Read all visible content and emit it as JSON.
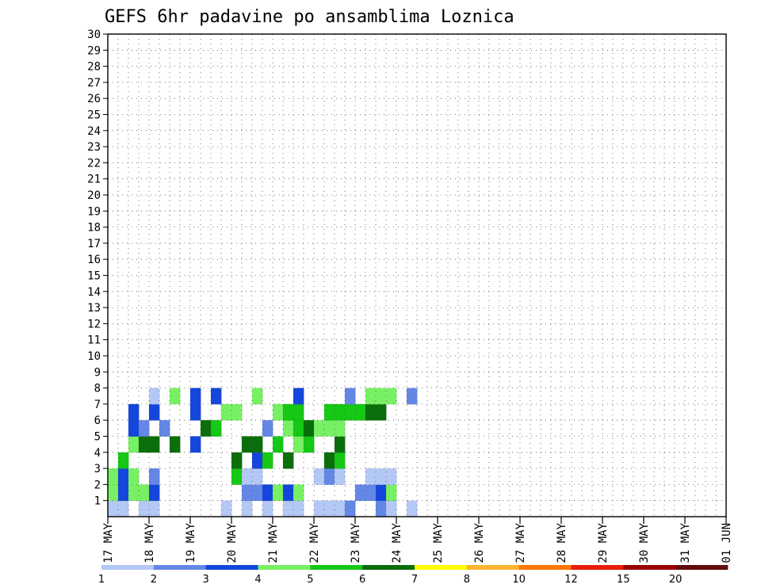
{
  "chart_data": {
    "type": "heatmap",
    "title": "GEFS 6hr padavine po ansamblima Loznica",
    "xlabel": "",
    "ylabel": "",
    "x_ticks": [
      "17 MAY",
      "18 MAY",
      "19 MAY",
      "20 MAY",
      "21 MAY",
      "22 MAY",
      "23 MAY",
      "24 MAY",
      "25 MAY",
      "26 MAY",
      "27 MAY",
      "28 MAY",
      "29 MAY",
      "30 MAY",
      "31 MAY",
      "01 JUN"
    ],
    "x_range": [
      "17 MAY 00Z",
      "01 JUN 00Z"
    ],
    "time_step_hours": 6,
    "y_ticks": [
      1,
      2,
      3,
      4,
      5,
      6,
      7,
      8,
      9,
      10,
      11,
      12,
      13,
      14,
      15,
      16,
      17,
      18,
      19,
      20,
      21,
      22,
      23,
      24,
      25,
      26,
      27,
      28,
      29,
      30
    ],
    "y_range": [
      0,
      30
    ],
    "grid": true,
    "legend_position": "bottom",
    "colorbar": {
      "labels": [
        "1",
        "2",
        "3",
        "4",
        "5",
        "6",
        "7",
        "8",
        "10",
        "12",
        "15",
        "20"
      ],
      "colors": [
        "#b4c8f5",
        "#6487e6",
        "#1446dc",
        "#78f064",
        "#14c814",
        "#0a6e0a",
        "#ffff00",
        "#ffb432",
        "#ff7800",
        "#e61e0a",
        "#9b0000",
        "#640a0a"
      ]
    },
    "cells": [
      [
        1,
        1,
        0
      ],
      [
        1,
        1,
        1
      ],
      [
        1,
        1,
        3
      ],
      [
        1,
        1,
        4
      ],
      [
        1,
        1,
        11
      ],
      [
        1,
        1,
        13
      ],
      [
        1,
        1,
        15
      ],
      [
        1,
        1,
        17
      ],
      [
        1,
        1,
        18
      ],
      [
        1,
        1,
        20
      ],
      [
        1,
        1,
        21
      ],
      [
        1,
        1,
        22
      ],
      [
        1,
        2,
        23
      ],
      [
        1,
        2,
        26
      ],
      [
        1,
        1,
        27
      ],
      [
        1,
        1,
        29
      ],
      [
        2,
        4,
        0
      ],
      [
        2,
        3,
        1
      ],
      [
        2,
        4,
        2
      ],
      [
        2,
        4,
        3
      ],
      [
        2,
        3,
        4
      ],
      [
        2,
        2,
        13
      ],
      [
        2,
        2,
        14
      ],
      [
        2,
        3,
        15
      ],
      [
        2,
        4,
        16
      ],
      [
        2,
        3,
        17
      ],
      [
        2,
        4,
        18
      ],
      [
        2,
        2,
        24
      ],
      [
        2,
        2,
        25
      ],
      [
        2,
        3,
        26
      ],
      [
        2,
        4,
        27
      ],
      [
        3,
        4,
        0
      ],
      [
        3,
        3,
        1
      ],
      [
        3,
        4,
        2
      ],
      [
        3,
        2,
        4
      ],
      [
        3,
        5,
        12
      ],
      [
        3,
        1,
        13
      ],
      [
        3,
        1,
        14
      ],
      [
        3,
        1,
        20
      ],
      [
        3,
        2,
        21
      ],
      [
        3,
        1,
        22
      ],
      [
        3,
        1,
        25
      ],
      [
        3,
        1,
        26
      ],
      [
        3,
        1,
        27
      ],
      [
        4,
        5,
        1
      ],
      [
        4,
        6,
        12
      ],
      [
        4,
        3,
        14
      ],
      [
        4,
        5,
        15
      ],
      [
        4,
        6,
        17
      ],
      [
        4,
        6,
        21
      ],
      [
        4,
        5,
        22
      ],
      [
        5,
        4,
        2
      ],
      [
        5,
        6,
        3
      ],
      [
        5,
        6,
        4
      ],
      [
        5,
        6,
        6
      ],
      [
        5,
        3,
        8
      ],
      [
        5,
        6,
        13
      ],
      [
        5,
        6,
        14
      ],
      [
        5,
        5,
        16
      ],
      [
        5,
        4,
        18
      ],
      [
        5,
        5,
        19
      ],
      [
        5,
        6,
        22
      ],
      [
        6,
        3,
        2
      ],
      [
        6,
        2,
        3
      ],
      [
        6,
        2,
        5
      ],
      [
        6,
        6,
        9
      ],
      [
        6,
        5,
        10
      ],
      [
        6,
        2,
        15
      ],
      [
        6,
        4,
        17
      ],
      [
        6,
        5,
        18
      ],
      [
        6,
        6,
        19
      ],
      [
        6,
        4,
        20
      ],
      [
        6,
        4,
        21
      ],
      [
        6,
        4,
        22
      ],
      [
        7,
        3,
        2
      ],
      [
        7,
        3,
        4
      ],
      [
        7,
        3,
        8
      ],
      [
        7,
        4,
        11
      ],
      [
        7,
        4,
        12
      ],
      [
        7,
        4,
        16
      ],
      [
        7,
        5,
        17
      ],
      [
        7,
        5,
        18
      ],
      [
        7,
        5,
        21
      ],
      [
        7,
        5,
        22
      ],
      [
        7,
        5,
        23
      ],
      [
        7,
        5,
        24
      ],
      [
        7,
        6,
        25
      ],
      [
        7,
        6,
        26
      ],
      [
        8,
        1,
        4
      ],
      [
        8,
        4,
        6
      ],
      [
        8,
        3,
        8
      ],
      [
        8,
        3,
        10
      ],
      [
        8,
        4,
        14
      ],
      [
        8,
        3,
        18
      ],
      [
        8,
        2,
        23
      ],
      [
        8,
        4,
        25
      ],
      [
        8,
        4,
        26
      ],
      [
        8,
        4,
        27
      ],
      [
        8,
        2,
        29
      ]
    ],
    "cell_value_note": "each cell: [member row, colorbar class 1-12, 6-hour step index from 17 MAY 00Z]"
  }
}
